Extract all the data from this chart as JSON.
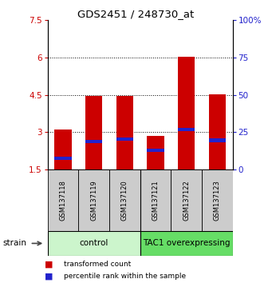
{
  "title": "GDS2451 / 248730_at",
  "samples": [
    "GSM137118",
    "GSM137119",
    "GSM137120",
    "GSM137121",
    "GSM137122",
    "GSM137123"
  ],
  "red_bar_heights": [
    3.1,
    4.47,
    4.44,
    2.85,
    6.01,
    4.52
  ],
  "blue_marker_values": [
    1.95,
    2.62,
    2.72,
    2.28,
    3.12,
    2.68
  ],
  "bar_bottom": 1.5,
  "ylim_left": [
    1.5,
    7.5
  ],
  "ylim_right": [
    0,
    100
  ],
  "yticks_left": [
    1.5,
    3.0,
    4.5,
    6.0,
    7.5
  ],
  "ytick_labels_left": [
    "1.5",
    "3",
    "4.5",
    "6",
    "7.5"
  ],
  "yticks_right": [
    0,
    25,
    50,
    75,
    100
  ],
  "ytick_labels_right": [
    "0",
    "25",
    "50",
    "75",
    "100%"
  ],
  "grid_yvals": [
    3.0,
    4.5,
    6.0
  ],
  "groups": [
    {
      "label": "control",
      "start": 0,
      "end": 3,
      "color": "#ccf5cc"
    },
    {
      "label": "TAC1 overexpressing",
      "start": 3,
      "end": 6,
      "color": "#66dd66"
    }
  ],
  "legend_items": [
    {
      "color": "#cc0000",
      "label": "transformed count"
    },
    {
      "color": "#2222cc",
      "label": "percentile rank within the sample"
    }
  ],
  "bar_color": "#cc0000",
  "blue_color": "#2222cc",
  "bar_width": 0.55,
  "axis_left_color": "#cc0000",
  "axis_right_color": "#2222cc",
  "sample_box_color": "#cccccc",
  "strain_label": "strain"
}
